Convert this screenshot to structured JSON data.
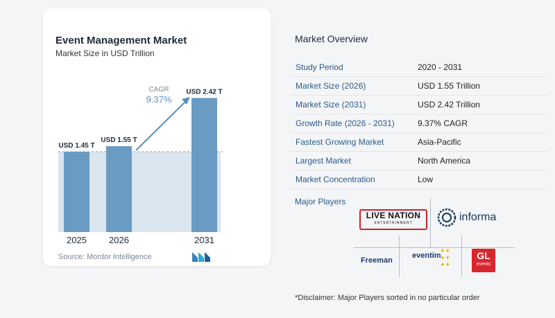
{
  "chart": {
    "title": "Event Management Market",
    "subtitle": "Market Size in USD Trillion",
    "cagr_label": "CAGR",
    "cagr_value": "9.37%",
    "source": "Source:  Mordor Intelligence"
  },
  "chart_data": {
    "type": "bar",
    "title": "Event Management Market",
    "subtitle": "Market Size in USD Trillion",
    "categories": [
      "2025",
      "2026",
      "2031"
    ],
    "values": [
      1.45,
      1.55,
      2.42
    ],
    "data_labels": [
      "USD 1.45 T",
      "USD 1.55 T",
      "USD 2.42 T"
    ],
    "ylim": [
      0,
      2.6
    ],
    "grid": false,
    "annotations": [
      "CAGR",
      "9.37%"
    ]
  },
  "overview": {
    "title": "Market Overview",
    "rows": [
      {
        "label": "Study Period",
        "value": "2020 - 2031"
      },
      {
        "label": "Market Size (2026)",
        "value": "USD 1.55 Trillion"
      },
      {
        "label": "Market Size (2031)",
        "value": "USD 2.42 Trillion"
      },
      {
        "label": "Growth Rate (2026 - 2031)",
        "value": "9.37% CAGR"
      },
      {
        "label": "Fastest Growing Market",
        "value": "Asia-Pacific"
      },
      {
        "label": "Largest Market",
        "value": "North America"
      },
      {
        "label": "Market Concentration",
        "value": "Low"
      }
    ]
  },
  "players": {
    "label": "Major Players",
    "live_nation": "LIVE NATION",
    "live_nation_sub": "ENTERTAINMENT",
    "informa": "informa",
    "freeman": "Freeman",
    "eventim": "eventim",
    "gl": "GL",
    "gl_sub": "events"
  },
  "disclaimer": "*Disclaimer: Major Players sorted in no particular order",
  "colors": {
    "bar": "#6a9bc3",
    "accent": "#5a8fc0",
    "band": "#dbe5ee",
    "label": "#2a5a8c"
  }
}
